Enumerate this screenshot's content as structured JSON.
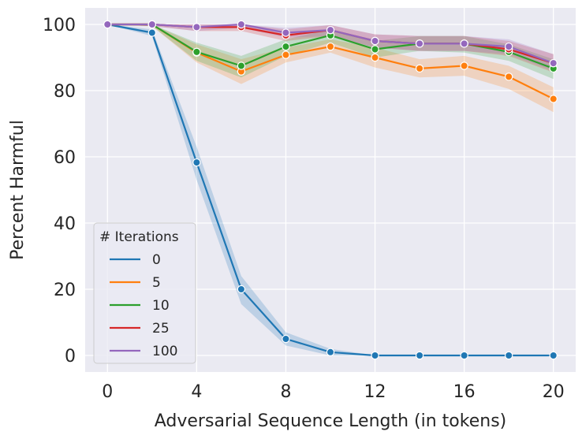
{
  "chart_data": {
    "type": "line",
    "title": "",
    "xlabel": "Adversarial Sequence Length (in tokens)",
    "ylabel": "Percent Harmful",
    "xlim": [
      -1,
      21
    ],
    "ylim": [
      -5,
      105
    ],
    "xticks": [
      0,
      4,
      8,
      12,
      16,
      20
    ],
    "yticks": [
      0,
      20,
      40,
      60,
      80,
      100
    ],
    "grid": true,
    "legend": {
      "title": "# Iterations",
      "placement": "lower-left"
    },
    "x": [
      0,
      2,
      4,
      6,
      8,
      10,
      12,
      14,
      16,
      18,
      20
    ],
    "series": [
      {
        "name": "0",
        "color": "#1f77b4",
        "values": [
          100,
          97.5,
          58.3,
          20,
          5,
          1,
          0,
          0,
          0,
          0,
          0
        ],
        "lower": [
          100,
          96.5,
          53,
          15.5,
          3,
          0,
          0,
          0,
          0,
          0,
          0
        ],
        "upper": [
          100,
          98.5,
          63,
          24,
          7,
          2,
          0,
          0,
          0,
          0,
          0
        ]
      },
      {
        "name": "5",
        "color": "#ff7f0e",
        "values": [
          100,
          100,
          91.5,
          85.8,
          90.8,
          93.3,
          90,
          86.7,
          87.5,
          84.2,
          77.5
        ],
        "lower": [
          100,
          99.5,
          88.5,
          82,
          88.5,
          91.5,
          87,
          84,
          84.5,
          80.5,
          73.5
        ],
        "upper": [
          100,
          100,
          94,
          89.5,
          93,
          95.5,
          93,
          89.5,
          90.5,
          87.5,
          81
        ]
      },
      {
        "name": "10",
        "color": "#2ca02c",
        "values": [
          100,
          100,
          91.7,
          87.5,
          93.3,
          96.7,
          92.5,
          94.2,
          94.2,
          91.7,
          86.7
        ],
        "lower": [
          100,
          99.5,
          89,
          84,
          90.5,
          94.5,
          90,
          92,
          91.5,
          89,
          83.5
        ],
        "upper": [
          100,
          100,
          94.5,
          90.5,
          95.5,
          98.5,
          95,
          96.5,
          96.5,
          94,
          89.5
        ]
      },
      {
        "name": "25",
        "color": "#d62728",
        "values": [
          100,
          100,
          99.2,
          99.2,
          96.7,
          98.3,
          95,
          94.2,
          94.2,
          92.5,
          88.3
        ],
        "lower": [
          100,
          99.5,
          98,
          98,
          95,
          96.5,
          93,
          92,
          92,
          90.5,
          85.5
        ],
        "upper": [
          100,
          100,
          100,
          100,
          98.5,
          99.8,
          97,
          96.5,
          96.5,
          95,
          91
        ]
      },
      {
        "name": "100",
        "color": "#9467bd",
        "values": [
          100,
          100,
          99.2,
          100,
          97.5,
          98.3,
          95,
          94.2,
          94.2,
          93.3,
          88.3
        ],
        "lower": [
          100,
          99.5,
          98,
          99,
          96,
          96.5,
          93,
          92,
          92,
          91,
          86
        ],
        "upper": [
          100,
          100,
          100,
          100,
          99,
          99.8,
          97,
          96.5,
          96.5,
          95.5,
          91
        ]
      }
    ]
  }
}
